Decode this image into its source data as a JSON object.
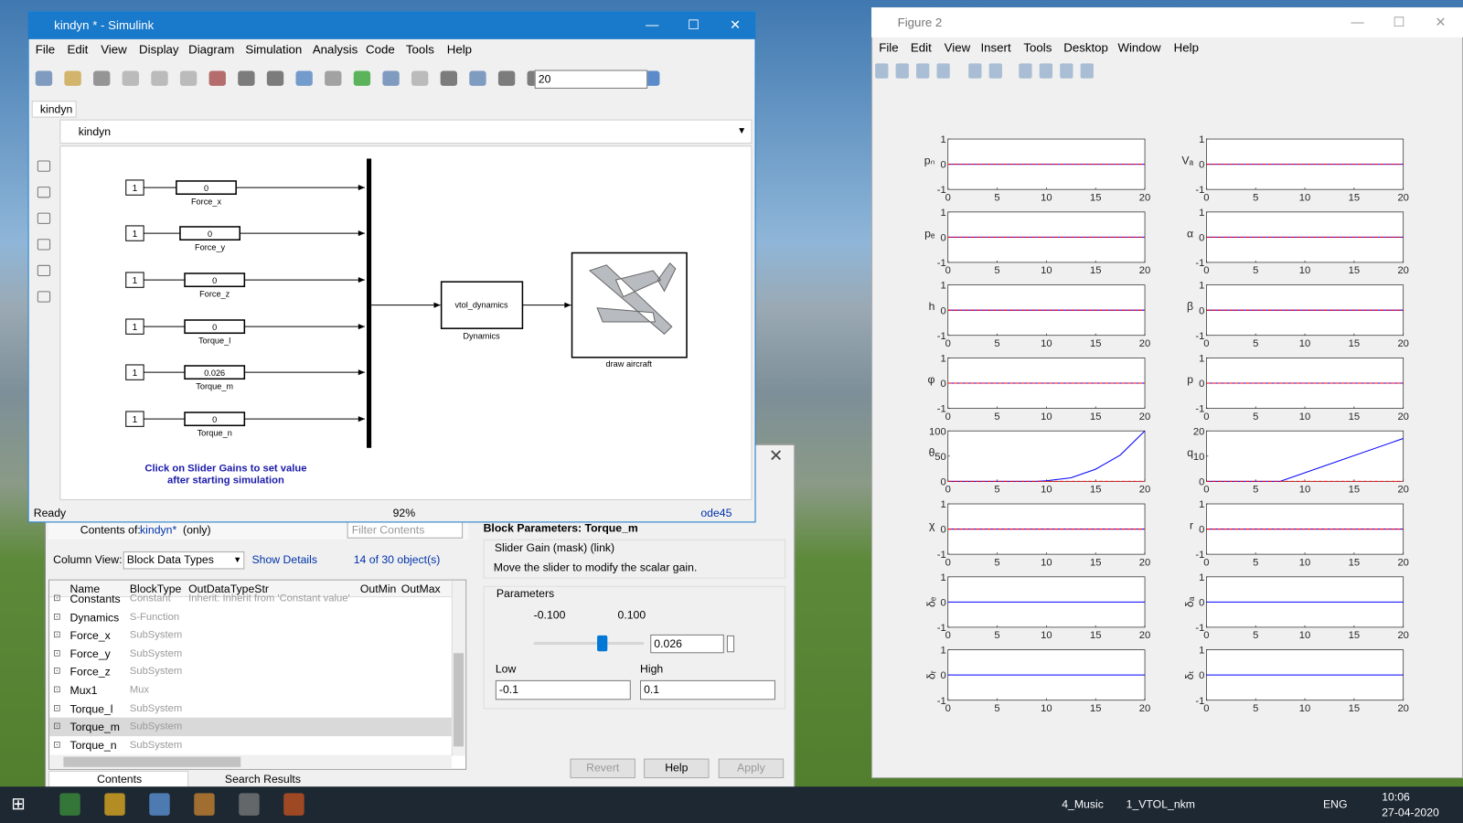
{
  "simulink": {
    "title": "kindyn * - Simulink",
    "menu": [
      "File",
      "Edit",
      "View",
      "Display",
      "Diagram",
      "Simulation",
      "Analysis",
      "Code",
      "Tools",
      "Help"
    ],
    "stop_time": "20",
    "tab": "kindyn",
    "breadcrumb": "kindyn",
    "constants": [
      "1",
      "1",
      "1",
      "1",
      "1",
      "1"
    ],
    "gains": [
      {
        "value": "0",
        "label": "Force_x"
      },
      {
        "value": "0",
        "label": "Force_y"
      },
      {
        "value": "0",
        "label": "Force_z"
      },
      {
        "value": "0",
        "label": "Torque_l"
      },
      {
        "value": "0.026",
        "label": "Torque_m"
      },
      {
        "value": "0",
        "label": "Torque_n"
      }
    ],
    "dynamics": {
      "text": "vtol_dynamics",
      "label": "Dynamics"
    },
    "aircraft_label": "draw aircraft",
    "annotation": [
      "Click on Slider Gains to set value",
      "after starting simulation"
    ],
    "status": {
      "state": "Ready",
      "zoom": "92%",
      "solver": "ode45"
    }
  },
  "explorer": {
    "contents_of": "Contents of:",
    "model": "kindyn*",
    "scope": "(only)",
    "filter": "Filter Contents",
    "column_view": "Column View:",
    "view": "Block Data Types",
    "show_details": "Show Details",
    "count": "14 of 30 object(s)",
    "columns": [
      "Name",
      "BlockType",
      "OutDataTypeStr",
      "OutMin",
      "OutMax"
    ],
    "rows": [
      [
        "Constants",
        "Constant",
        "Inherit: Inherit from 'Constant value'"
      ],
      [
        "Dynamics",
        "S-Function"
      ],
      [
        "Force_x",
        "SubSystem"
      ],
      [
        "Force_y",
        "SubSystem"
      ],
      [
        "Force_z",
        "SubSystem"
      ],
      [
        "Mux1",
        "Mux"
      ],
      [
        "Torque_l",
        "SubSystem"
      ],
      [
        "Torque_m",
        "SubSystem"
      ],
      [
        "Torque_n",
        "SubSystem"
      ]
    ],
    "tabs": [
      "Contents",
      "Search Results"
    ]
  },
  "block_parameters": {
    "title": "Block Parameters: Torque_m",
    "mask": "Slider Gain (mask) (link)",
    "description": "Move the slider to modify the scalar gain.",
    "group": "Parameters",
    "slider_min": "-0.100",
    "slider_max": "0.100",
    "gain": "0.026",
    "low_label": "Low",
    "high_label": "High",
    "low": "-0.1",
    "high": "0.1",
    "buttons": [
      "Revert",
      "Help",
      "Apply"
    ]
  },
  "figure": {
    "title": "Figure 2",
    "menu": [
      "File",
      "Edit",
      "View",
      "Insert",
      "Tools",
      "Desktop",
      "Window",
      "Help"
    ],
    "plots": [
      {
        "ylabel": "pₙ",
        "ylim": [
          -1,
          1
        ],
        "yticks": [
          -1,
          0,
          1
        ],
        "xlim": [
          0,
          20
        ],
        "xticks": [
          0,
          5,
          10,
          15,
          20
        ],
        "x": [
          0,
          20
        ],
        "series": [
          {
            "color": "#0000ff",
            "values": [
              0,
              0
            ]
          },
          {
            "color": "#ff0000",
            "style": "dashed",
            "values": [
              0,
              0
            ]
          }
        ]
      },
      {
        "ylabel": "Vₐ",
        "ylim": [
          -1,
          1
        ],
        "yticks": [
          -1,
          0,
          1
        ],
        "xlim": [
          0,
          20
        ],
        "xticks": [
          0,
          5,
          10,
          15,
          20
        ],
        "x": [
          0,
          20
        ],
        "series": [
          {
            "color": "#0000ff",
            "values": [
              0,
              0
            ]
          },
          {
            "color": "#ff0000",
            "style": "dashed",
            "values": [
              0,
              0
            ]
          }
        ]
      },
      {
        "ylabel": "pₑ",
        "ylim": [
          -1,
          1
        ],
        "yticks": [
          -1,
          0,
          1
        ],
        "xlim": [
          0,
          20
        ],
        "xticks": [
          0,
          5,
          10,
          15,
          20
        ],
        "x": [
          0,
          20
        ],
        "series": [
          {
            "color": "#0000ff",
            "values": [
              0,
              0
            ]
          },
          {
            "color": "#ff0000",
            "style": "dashed",
            "values": [
              0,
              0
            ]
          }
        ]
      },
      {
        "ylabel": "α",
        "ylim": [
          -1,
          1
        ],
        "yticks": [
          -1,
          0,
          1
        ],
        "xlim": [
          0,
          20
        ],
        "xticks": [
          0,
          5,
          10,
          15,
          20
        ],
        "x": [
          0,
          20
        ],
        "series": [
          {
            "color": "#0000ff",
            "values": [
              0,
              0
            ]
          },
          {
            "color": "#ff0000",
            "style": "dashed",
            "values": [
              0,
              0
            ]
          }
        ]
      },
      {
        "ylabel": "h",
        "ylim": [
          -1,
          1
        ],
        "yticks": [
          -1,
          0,
          1
        ],
        "xlim": [
          0,
          20
        ],
        "xticks": [
          0,
          5,
          10,
          15,
          20
        ],
        "x": [
          0,
          20
        ],
        "series": [
          {
            "color": "#0000ff",
            "values": [
              0,
              0
            ]
          },
          {
            "color": "#ff0000",
            "style": "dashed",
            "values": [
              0,
              0
            ]
          }
        ]
      },
      {
        "ylabel": "β",
        "ylim": [
          -1,
          1
        ],
        "yticks": [
          -1,
          0,
          1
        ],
        "xlim": [
          0,
          20
        ],
        "xticks": [
          0,
          5,
          10,
          15,
          20
        ],
        "x": [
          0,
          20
        ],
        "series": [
          {
            "color": "#0000ff",
            "values": [
              0,
              0
            ]
          },
          {
            "color": "#ff0000",
            "style": "dashed",
            "values": [
              0,
              0
            ]
          }
        ]
      },
      {
        "ylabel": "φ",
        "ylim": [
          -1,
          1
        ],
        "yticks": [
          -1,
          0,
          1
        ],
        "xlim": [
          0,
          20
        ],
        "xticks": [
          0,
          5,
          10,
          15,
          20
        ],
        "x": [
          0,
          20
        ],
        "series": [
          {
            "color": "#0000ff",
            "values": [
              0,
              0
            ]
          },
          {
            "color": "#ff0000",
            "style": "dashed",
            "values": [
              0,
              0
            ]
          }
        ]
      },
      {
        "ylabel": "p",
        "ylim": [
          -1,
          1
        ],
        "yticks": [
          -1,
          0,
          1
        ],
        "xlim": [
          0,
          20
        ],
        "xticks": [
          0,
          5,
          10,
          15,
          20
        ],
        "x": [
          0,
          20
        ],
        "series": [
          {
            "color": "#0000ff",
            "values": [
              0,
              0
            ]
          },
          {
            "color": "#ff0000",
            "style": "dashed",
            "values": [
              0,
              0
            ]
          }
        ]
      },
      {
        "ylabel": "θ",
        "ylim": [
          0,
          100
        ],
        "yticks": [
          0,
          50,
          100
        ],
        "xlim": [
          0,
          20
        ],
        "xticks": [
          0,
          5,
          10,
          15,
          20
        ],
        "x": [
          0,
          9,
          10,
          12.5,
          15,
          17.5,
          20
        ],
        "series": [
          {
            "color": "#0000ff",
            "values": [
              0,
              0,
              1,
              7,
              24,
              52,
              100
            ]
          },
          {
            "color": "#ff0000",
            "style": "dashed",
            "values": [
              0,
              0,
              0,
              0,
              0,
              0,
              0
            ]
          }
        ]
      },
      {
        "ylabel": "q",
        "ylim": [
          0,
          20
        ],
        "yticks": [
          0,
          10,
          20
        ],
        "xlim": [
          0,
          20
        ],
        "xticks": [
          0,
          5,
          10,
          15,
          20
        ],
        "x": [
          0,
          7.5,
          20
        ],
        "series": [
          {
            "color": "#0000ff",
            "values": [
              0,
              0,
              17
            ]
          },
          {
            "color": "#ff0000",
            "style": "dashed",
            "values": [
              0,
              0,
              0
            ]
          }
        ]
      },
      {
        "ylabel": "χ",
        "ylim": [
          -1,
          1
        ],
        "yticks": [
          -1,
          0,
          1
        ],
        "xlim": [
          0,
          20
        ],
        "xticks": [
          0,
          5,
          10,
          15,
          20
        ],
        "x": [
          0,
          20
        ],
        "series": [
          {
            "color": "#0000ff",
            "values": [
              0,
              0
            ]
          },
          {
            "color": "#ff0000",
            "style": "dashed",
            "values": [
              0,
              0
            ]
          }
        ]
      },
      {
        "ylabel": "r",
        "ylim": [
          -1,
          1
        ],
        "yticks": [
          -1,
          0,
          1
        ],
        "xlim": [
          0,
          20
        ],
        "xticks": [
          0,
          5,
          10,
          15,
          20
        ],
        "x": [
          0,
          20
        ],
        "series": [
          {
            "color": "#0000ff",
            "values": [
              0,
              0
            ]
          },
          {
            "color": "#ff0000",
            "style": "dashed",
            "values": [
              0,
              0
            ]
          }
        ]
      },
      {
        "ylabel": "δₑ",
        "ylim": [
          -1,
          1
        ],
        "yticks": [
          -1,
          0,
          1
        ],
        "xlim": [
          0,
          20
        ],
        "xticks": [
          0,
          5,
          10,
          15,
          20
        ],
        "x": [
          0,
          20
        ],
        "series": [
          {
            "color": "#0000ff",
            "values": [
              0,
              0
            ]
          }
        ]
      },
      {
        "ylabel": "δₐ",
        "ylim": [
          -1,
          1
        ],
        "yticks": [
          -1,
          0,
          1
        ],
        "xlim": [
          0,
          20
        ],
        "xticks": [
          0,
          5,
          10,
          15,
          20
        ],
        "x": [
          0,
          20
        ],
        "series": [
          {
            "color": "#0000ff",
            "values": [
              0,
              0
            ]
          }
        ]
      },
      {
        "ylabel": "δᵣ",
        "ylim": [
          -1,
          1
        ],
        "yticks": [
          -1,
          0,
          1
        ],
        "xlim": [
          0,
          20
        ],
        "xticks": [
          0,
          5,
          10,
          15,
          20
        ],
        "x": [
          0,
          20
        ],
        "series": [
          {
            "color": "#0000ff",
            "values": [
              0,
              0
            ]
          }
        ]
      },
      {
        "ylabel": "δₜ",
        "ylim": [
          -1,
          1
        ],
        "yticks": [
          -1,
          0,
          1
        ],
        "xlim": [
          0,
          20
        ],
        "xticks": [
          0,
          5,
          10,
          15,
          20
        ],
        "x": [
          0,
          20
        ],
        "series": [
          {
            "color": "#0000ff",
            "values": [
              0,
              0
            ]
          }
        ]
      }
    ]
  },
  "taskbar": {
    "items": [
      "4_Music",
      "1_VTOL_nkm"
    ],
    "language": "ENG",
    "time": "10:06",
    "date": "27-04-2020"
  }
}
